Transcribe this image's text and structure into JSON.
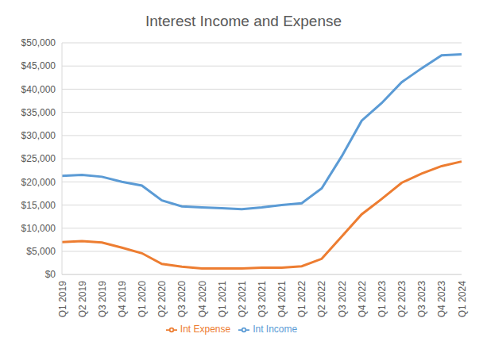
{
  "chart_data": {
    "type": "line",
    "title": "Interest Income and Expense",
    "categories": [
      "Q1 2019",
      "Q2 2019",
      "Q3 2019",
      "Q4 2019",
      "Q1 2020",
      "Q2 2020",
      "Q3 2020",
      "Q4 2020",
      "Q1 2021",
      "Q2 2021",
      "Q3 2021",
      "Q4 2021",
      "Q1 2022",
      "Q2 2022",
      "Q3 2022",
      "Q4 2022",
      "Q1 2023",
      "Q2 2023",
      "Q3 2023",
      "Q4 2023",
      "Q1 2024"
    ],
    "series": [
      {
        "name": "Int Income",
        "color": "#5b9bd5",
        "values": [
          21300,
          21500,
          21100,
          20000,
          19200,
          16000,
          14700,
          14500,
          14300,
          14100,
          14500,
          15000,
          15400,
          18600,
          25500,
          33200,
          37000,
          41500,
          44500,
          47300,
          47500
        ]
      },
      {
        "name": "Int Expense",
        "color": "#ed7d31",
        "values": [
          7000,
          7200,
          6900,
          5800,
          4600,
          2300,
          1700,
          1300,
          1300,
          1300,
          1500,
          1500,
          1800,
          3400,
          8200,
          13000,
          16300,
          19800,
          21800,
          23400,
          24400
        ]
      }
    ],
    "ylim": [
      0,
      50000
    ],
    "yticks": [
      {
        "value": 0,
        "label": "$0"
      },
      {
        "value": 5000,
        "label": "$5,000"
      },
      {
        "value": 10000,
        "label": "$10,000"
      },
      {
        "value": 15000,
        "label": "$15,000"
      },
      {
        "value": 20000,
        "label": "$20,000"
      },
      {
        "value": 25000,
        "label": "$25,000"
      },
      {
        "value": 30000,
        "label": "$30,000"
      },
      {
        "value": 35000,
        "label": "$35,000"
      },
      {
        "value": 40000,
        "label": "$40,000"
      },
      {
        "value": 45000,
        "label": "$45,000"
      },
      {
        "value": 50000,
        "label": "$50,000"
      }
    ],
    "grid": true,
    "legend": "bottom"
  }
}
